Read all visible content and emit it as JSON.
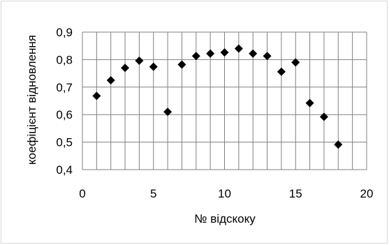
{
  "chart_data": {
    "type": "scatter",
    "title": "",
    "xlabel": "№ відскоку",
    "ylabel": "коефіцієнт відновлення",
    "xlim": [
      0,
      20
    ],
    "ylim": [
      0.4,
      0.9
    ],
    "x_ticks": [
      "0",
      "5",
      "10",
      "15",
      "20"
    ],
    "y_ticks": [
      "0,4",
      "0,5",
      "0,6",
      "0,7",
      "0,8",
      "0,9"
    ],
    "grid": true,
    "legend": "none",
    "marker": "diamond",
    "marker_color": "#000000",
    "x": [
      1,
      2,
      3,
      4,
      5,
      6,
      7,
      8,
      9,
      10,
      11,
      12,
      13,
      14,
      15,
      16,
      17,
      18
    ],
    "y": [
      0.668,
      0.725,
      0.77,
      0.796,
      0.774,
      0.61,
      0.782,
      0.813,
      0.822,
      0.826,
      0.84,
      0.822,
      0.813,
      0.756,
      0.79,
      0.642,
      0.592,
      0.491
    ]
  }
}
